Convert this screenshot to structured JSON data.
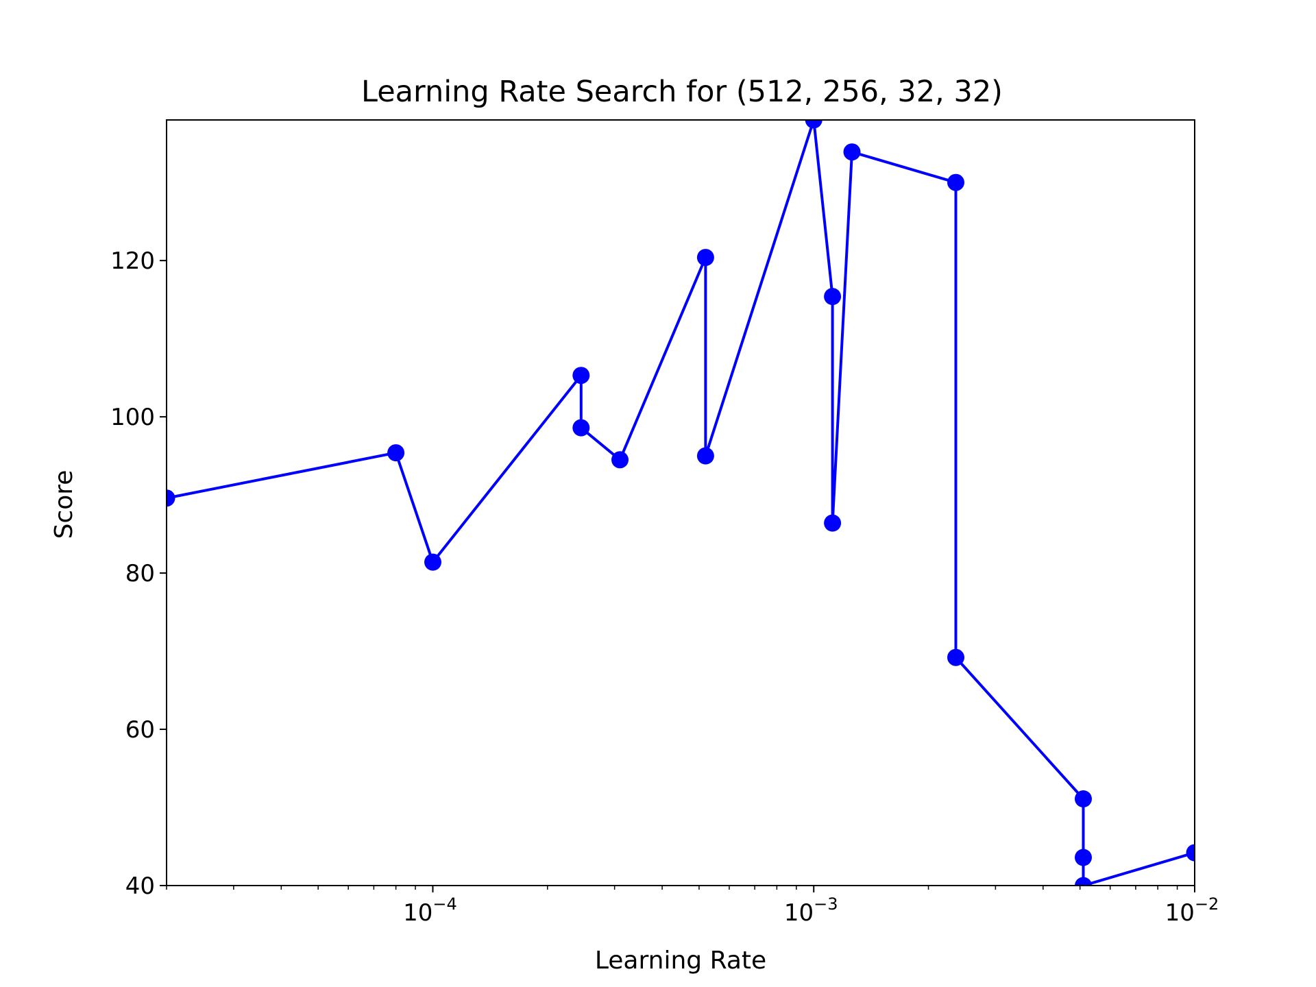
{
  "chart_data": {
    "type": "line",
    "title": "Learning Rate Search for (512, 256, 32, 32)",
    "xlabel": "Learning Rate",
    "ylabel": "Score",
    "xscale": "log",
    "xlim": [
      2e-05,
      0.01
    ],
    "ylim": [
      40,
      138
    ],
    "x_ticks": [
      {
        "value": 0.0001,
        "base": "10",
        "exp": "−4"
      },
      {
        "value": 0.001,
        "base": "10",
        "exp": "−3"
      },
      {
        "value": 0.01,
        "base": "10",
        "exp": "−2"
      }
    ],
    "y_ticks": [
      40,
      60,
      80,
      100,
      120
    ],
    "grid": false,
    "marker": "circle",
    "color": "#0000ff",
    "series": [
      {
        "x": [
          2e-05,
          8e-05,
          0.0001,
          0.000245,
          0.000245,
          0.00031,
          0.00052,
          0.00052,
          0.001,
          0.00112,
          0.00112,
          0.00126,
          0.00236,
          0.00236,
          0.0051,
          0.0051,
          0.0051,
          0.01
        ],
        "y": [
          89.6,
          95.4,
          81.4,
          105.3,
          98.6,
          94.5,
          120.4,
          95.0,
          138.0,
          115.4,
          86.4,
          133.9,
          130.0,
          69.2,
          51.1,
          43.6,
          40.0,
          44.2
        ]
      }
    ]
  }
}
